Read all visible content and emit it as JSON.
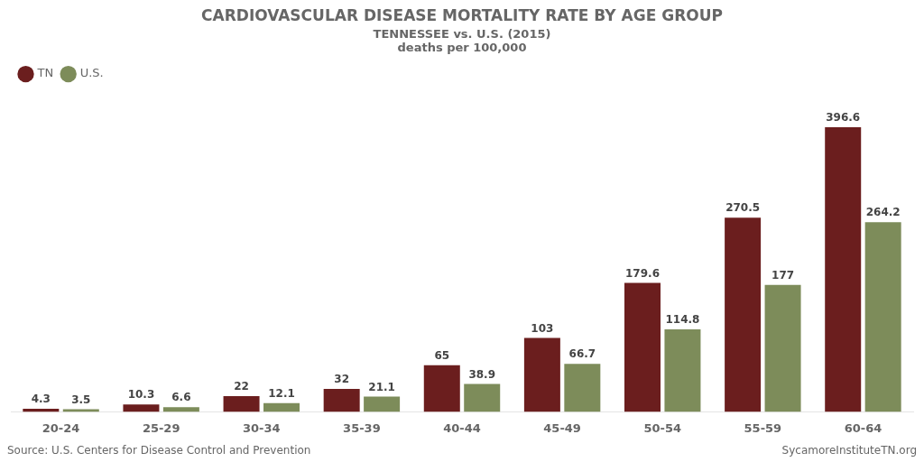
{
  "chart_data": {
    "type": "bar",
    "title": "CARDIOVASCULAR DISEASE MORTALITY RATE BY AGE GROUP",
    "subtitle": [
      "TENNESSEE vs. U.S. (2015)",
      "deaths per 100,000"
    ],
    "annotations": [
      "Source: U.S. Centers for Disease Control and Prevention",
      "SycamoreInstituteTN.org"
    ],
    "categories": [
      "20-24",
      "25-29",
      "30-34",
      "35-39",
      "40-44",
      "45-49",
      "50-54",
      "55-59",
      "60-64"
    ],
    "series": [
      {
        "name": "TN",
        "color": "#6B1E1E",
        "values": [
          4.3,
          10.3,
          22,
          32,
          65,
          103,
          179.6,
          270.5,
          396.6
        ]
      },
      {
        "name": "U.S.",
        "color": "#7D8C5A",
        "values": [
          3.5,
          6.6,
          12.1,
          21.1,
          38.9,
          66.7,
          114.8,
          177,
          264.2
        ]
      }
    ],
    "ylim": [
      0,
      450
    ],
    "grid": false,
    "legend": "upper left",
    "data_labels": true,
    "tick_labels": "x"
  }
}
